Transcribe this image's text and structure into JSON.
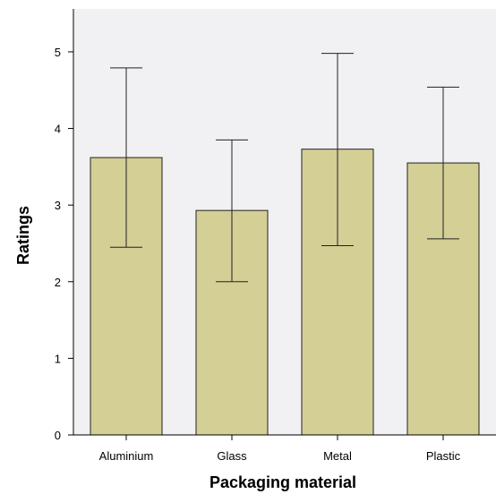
{
  "chart_data": {
    "type": "bar",
    "title": "",
    "xlabel": "Packaging material",
    "ylabel": "Ratings",
    "categories": [
      "Aluminium",
      "Glass",
      "Metal",
      "Plastic"
    ],
    "values": [
      3.62,
      2.93,
      3.73,
      3.55
    ],
    "error_upper": [
      4.79,
      3.85,
      4.98,
      4.54
    ],
    "error_lower": [
      2.45,
      2.0,
      2.47,
      2.56
    ],
    "ylim": [
      0,
      5.56
    ],
    "yticks": [
      "0",
      "1",
      "2",
      "3",
      "4",
      "5"
    ],
    "grid": false,
    "legend": "none",
    "colors": {
      "plot_background": "#f1f1f4",
      "bar_fill": "#d3cf95",
      "bar_stroke": "#222222",
      "error_bar": "#222222",
      "axis": "#000000"
    }
  }
}
